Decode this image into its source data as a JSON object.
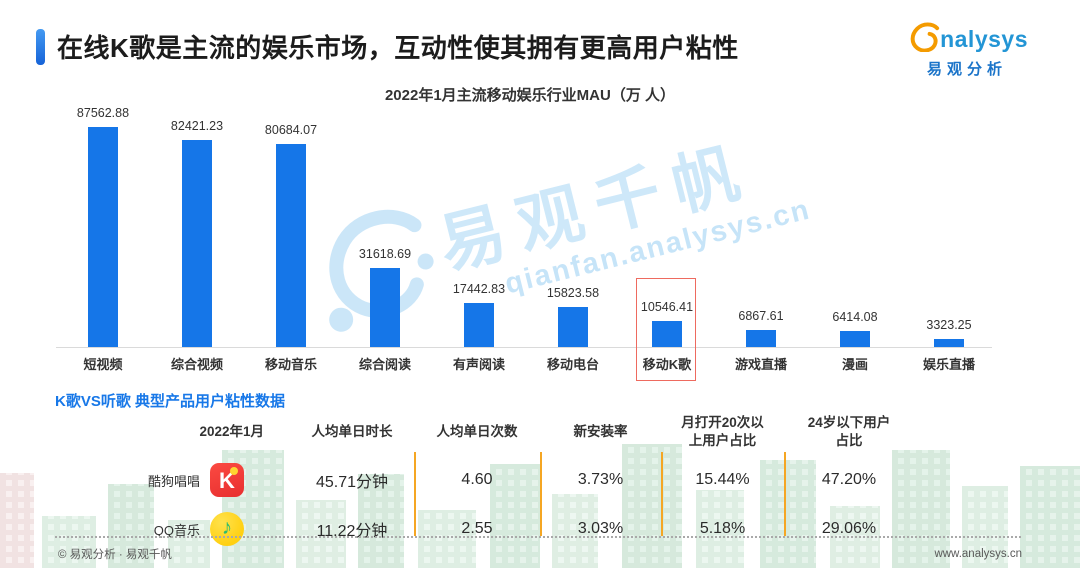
{
  "header": {
    "title": "在线K歌是主流的娱乐市场，互动性使其拥有更高用户粘性",
    "logo": {
      "brand": "nalysys",
      "brand_cn": "易观分析"
    }
  },
  "chart_data": {
    "type": "bar",
    "title": "2022年1月主流移动娱乐行业MAU（万 人）",
    "categories": [
      "短视频",
      "综合视频",
      "移动音乐",
      "综合阅读",
      "有声阅读",
      "移动电台",
      "移动K歌",
      "游戏直播",
      "漫画",
      "娱乐直播"
    ],
    "values": [
      87562.88,
      82421.23,
      80684.07,
      31618.69,
      17442.83,
      15823.58,
      10546.41,
      6867.61,
      6414.08,
      3323.25
    ],
    "value_labels": [
      "87562.88",
      "82421.23",
      "80684.07",
      "31618.69",
      "17442.83",
      "15823.58",
      "10546.41",
      "6867.61",
      "6414.08",
      "3323.25"
    ],
    "highlighted_category": "移动K歌",
    "bar_color": "#1576e8",
    "highlight_box_color": "#ee6a5f",
    "ylim": [
      0,
      90000
    ],
    "grid": false,
    "legend": false
  },
  "watermark": {
    "text": "易观千帆",
    "subtext": "qianfan.analysys.cn"
  },
  "table": {
    "title": "K歌VS听歌 典型产品用户粘性数据",
    "period_header": "2022年1月",
    "columns": [
      "人均单日时长",
      "人均单日次数",
      "新安装率",
      "月打开20次以上用户占比",
      "24岁以下用户占比"
    ],
    "rows": [
      {
        "product": "酷狗唱唱",
        "icon": "kugou-changchang-app-icon",
        "values": [
          "45.71分钟",
          "4.60",
          "3.73%",
          "15.44%",
          "47.20%"
        ]
      },
      {
        "product": "QQ音乐",
        "icon": "qq-music-app-icon",
        "values": [
          "11.22分钟",
          "2.55",
          "3.03%",
          "5.18%",
          "29.06%"
        ]
      }
    ],
    "accent_color": "#f5a623"
  },
  "footer": {
    "left": "© 易观分析 · 易观千帆",
    "right": "www.analysys.cn"
  }
}
